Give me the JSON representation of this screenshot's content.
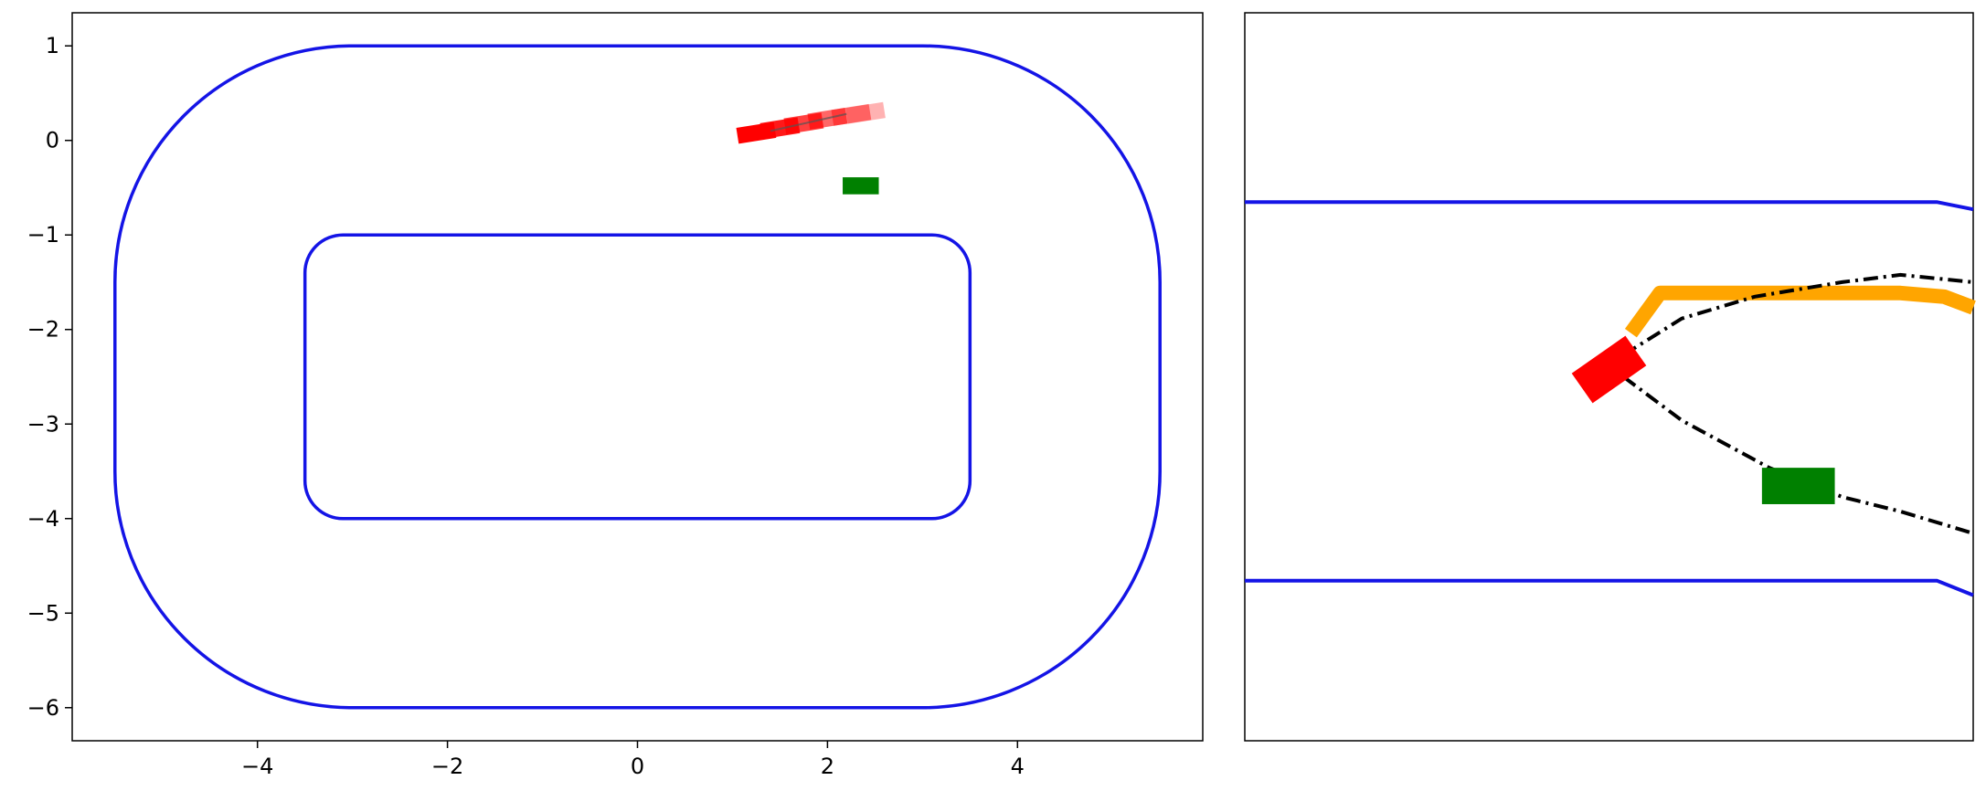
{
  "chart_data": [
    {
      "type": "scatter",
      "xlim": [
        -5.95,
        5.95
      ],
      "ylim": [
        -6.35,
        1.35
      ],
      "xticks": [
        -4,
        -2,
        0,
        2,
        4
      ],
      "xtick_labels": [
        "−4",
        "−2",
        "0",
        "2",
        "4"
      ],
      "yticks": [
        1,
        0,
        -1,
        -2,
        -3,
        -4,
        -5,
        -6
      ],
      "ytick_labels": [
        "1",
        "0",
        "−1",
        "−2",
        "−3",
        "−4",
        "−5",
        "−6"
      ],
      "grid": false,
      "colors": {
        "track": "#1414e6",
        "ego": "#ff0000",
        "other": "#008000"
      },
      "track_outer": {
        "x_min": -5.5,
        "x_max": 5.5,
        "y_min": -6.0,
        "y_max": 1.0,
        "corner_radius": 2.5
      },
      "track_inner": {
        "x_min": -3.5,
        "x_max": 3.5,
        "y_min": -4.0,
        "y_max": -1.0,
        "corner_radius": 0.4
      },
      "ego_history": [
        {
          "x": 1.25,
          "y": 0.08,
          "opacity": 1.0
        },
        {
          "x": 1.5,
          "y": 0.13,
          "opacity": 0.9
        },
        {
          "x": 1.75,
          "y": 0.18,
          "opacity": 0.75
        },
        {
          "x": 2.0,
          "y": 0.23,
          "opacity": 0.6
        },
        {
          "x": 2.25,
          "y": 0.27,
          "opacity": 0.45
        },
        {
          "x": 2.4,
          "y": 0.29,
          "opacity": 0.3
        }
      ],
      "ego_trace": [
        [
          1.4,
          0.1
        ],
        [
          2.2,
          0.28
        ]
      ],
      "other_vehicle": {
        "x": 2.35,
        "y": -0.48,
        "width": 0.38,
        "height": 0.18
      }
    },
    {
      "type": "scatter",
      "view": "zoomed",
      "axes_visible": false,
      "colors": {
        "track": "#1414e6",
        "ego": "#ff0000",
        "other": "#008000",
        "plan": "#ffa500",
        "prediction": "#000000"
      },
      "track_upper": [
        [
          0,
          0.26
        ],
        [
          0.95,
          0.26
        ],
        [
          1.0,
          0.27
        ]
      ],
      "track_lower": [
        [
          0,
          0.78
        ],
        [
          0.95,
          0.78
        ],
        [
          1.0,
          0.8
        ]
      ],
      "plan_path": [
        [
          0.53,
          0.44
        ],
        [
          0.57,
          0.385
        ],
        [
          0.9,
          0.385
        ],
        [
          0.96,
          0.39
        ],
        [
          1.0,
          0.405
        ]
      ],
      "prediction_upper": [
        [
          0.52,
          0.47
        ],
        [
          0.6,
          0.42
        ],
        [
          0.7,
          0.39
        ],
        [
          0.82,
          0.37
        ],
        [
          0.9,
          0.36
        ],
        [
          1.0,
          0.37
        ]
      ],
      "prediction_lower": [
        [
          0.52,
          0.5
        ],
        [
          0.6,
          0.56
        ],
        [
          0.72,
          0.625
        ],
        [
          0.82,
          0.665
        ],
        [
          0.9,
          0.685
        ],
        [
          1.0,
          0.715
        ]
      ],
      "ego_vehicle": {
        "cx": 0.5,
        "cy": 0.49,
        "w": 0.09,
        "h": 0.05,
        "angle_deg": -35
      },
      "other_vehicle": {
        "cx": 0.76,
        "cy": 0.65,
        "w": 0.1,
        "h": 0.05,
        "angle_deg": 0
      }
    }
  ]
}
